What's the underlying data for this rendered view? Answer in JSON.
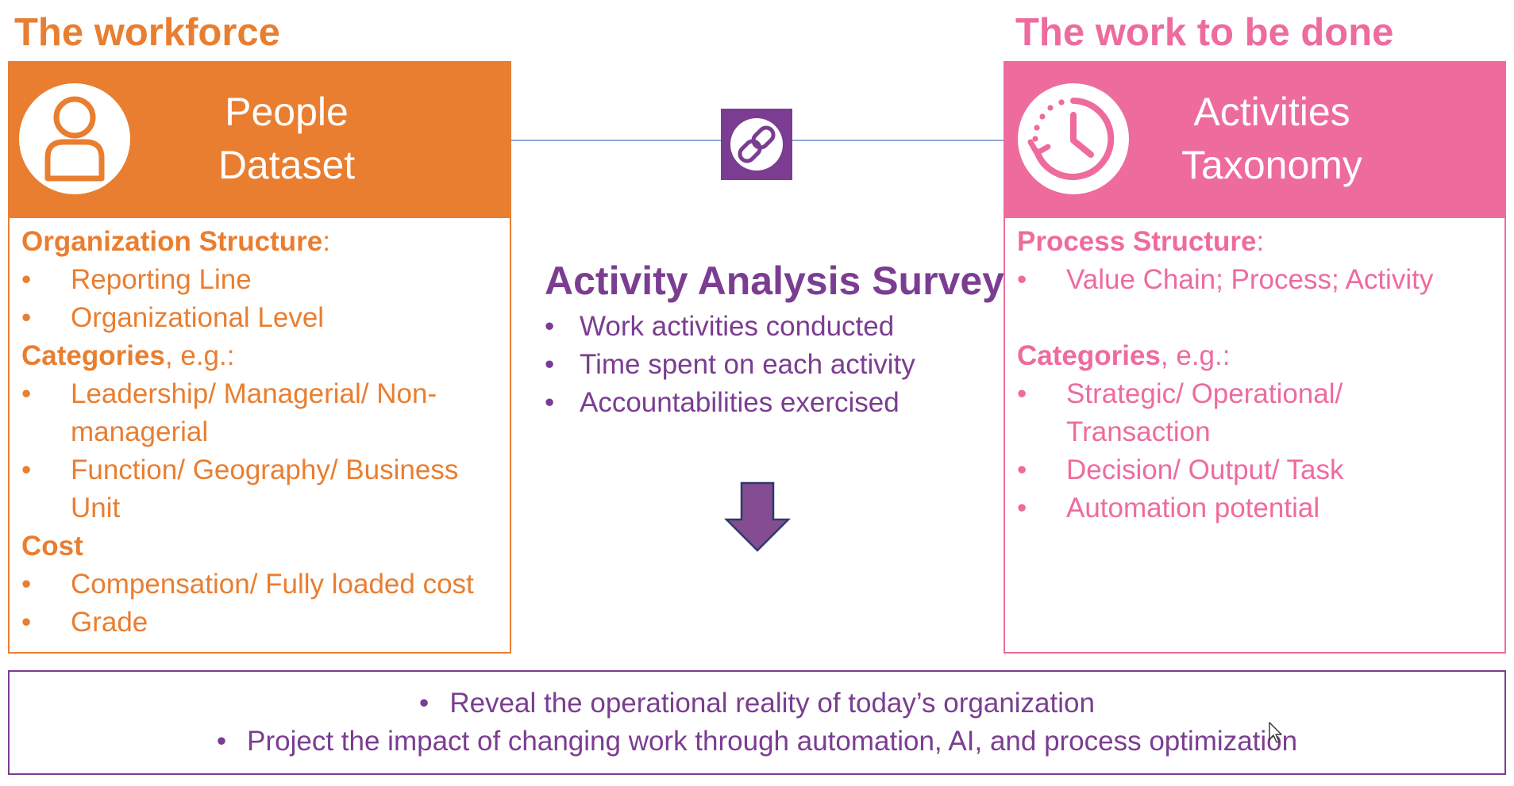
{
  "left": {
    "section_title": "The workforce",
    "header_line1": "People",
    "header_line2": "Dataset",
    "icon": "person-icon",
    "color": "#E97E30",
    "groups": [
      {
        "heading": "Organization Structure",
        "suffix": ":"
      },
      {
        "heading": "Categories",
        "suffix": ", e.g.:"
      },
      {
        "heading": "Cost",
        "suffix": ""
      }
    ],
    "bullets": {
      "reporting_line": "Reporting Line",
      "org_level": "Organizational Level",
      "leadership_1": "Leadership/ Managerial/ Non-",
      "leadership_2": "managerial",
      "function_1": "Function/ Geography/ Business",
      "function_2": "Unit",
      "compensation": "Compensation/ Fully loaded cost",
      "grade": "Grade"
    }
  },
  "right": {
    "section_title": "The work to be done",
    "header_line1": "Activities",
    "header_line2": "Taxonomy",
    "icon": "clock-history-icon",
    "color": "#EE6B9D",
    "groups": [
      {
        "heading": "Process Structure",
        "suffix": ":"
      },
      {
        "heading": "Categories",
        "suffix": ", e.g.:"
      }
    ],
    "bullets": {
      "value_chain": "Value Chain; Process; Activity",
      "strategic_1": "Strategic/ Operational/",
      "strategic_2": "Transaction",
      "decision": "Decision/ Output/ Task",
      "automation": "Automation potential"
    }
  },
  "center": {
    "link_icon": "link-icon",
    "survey_title": "Activity Analysis Survey",
    "items": [
      "Work activities conducted",
      "Time spent on each activity",
      "Accountabilities exercised"
    ],
    "arrow_icon": "down-arrow-icon",
    "color": "#7B3D91"
  },
  "bottom": {
    "items": [
      "Reveal the operational reality of today’s organization",
      "Project the impact of changing work through automation, AI, and process optimization"
    ]
  },
  "bullet_char": "•"
}
